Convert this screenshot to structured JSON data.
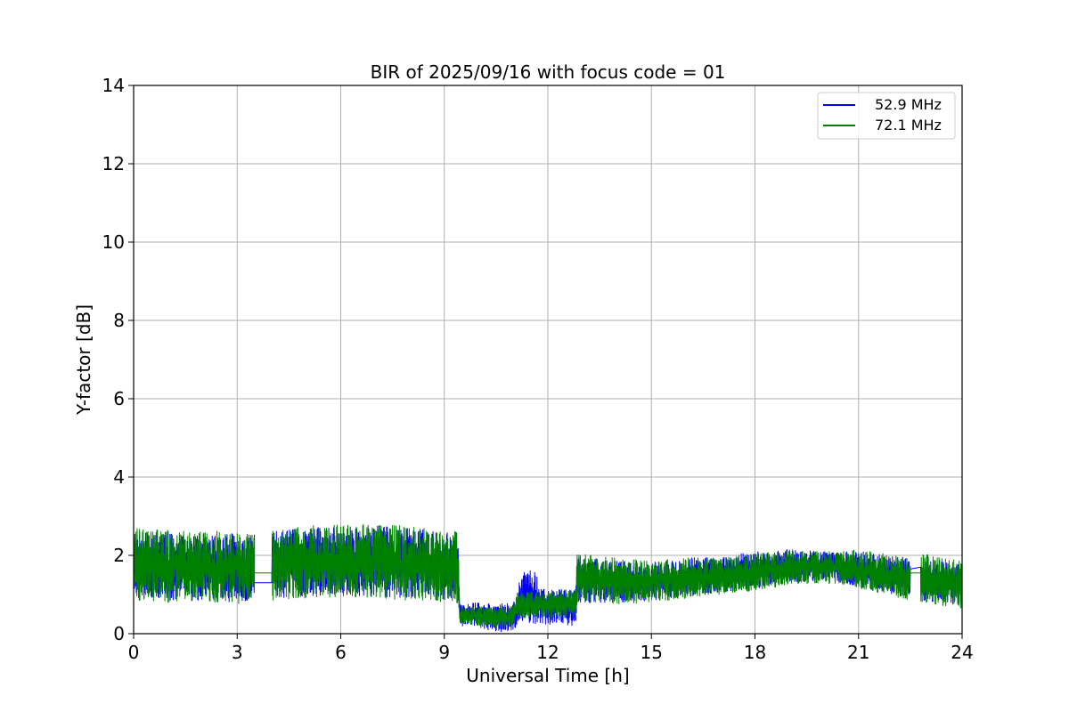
{
  "chart_data": {
    "type": "line",
    "title": "BIR of 2025/09/16 with focus code = 01",
    "xlabel": "Universal Time [h]",
    "ylabel": "Y-factor [dB]",
    "xlim": [
      0,
      24
    ],
    "ylim": [
      0,
      14
    ],
    "x_ticks": [
      0,
      3,
      6,
      9,
      12,
      15,
      18,
      21,
      24
    ],
    "y_ticks": [
      0,
      2,
      4,
      6,
      8,
      10,
      12,
      14
    ],
    "x_tick_labels": [
      "0",
      "3",
      "6",
      "9",
      "12",
      "15",
      "18",
      "21",
      "24"
    ],
    "y_tick_labels": [
      "0",
      "2",
      "4",
      "6",
      "8",
      "10",
      "12",
      "14"
    ],
    "grid": true,
    "legend_position": "top-right",
    "series": [
      {
        "name": "52.9 MHz",
        "color": "#0000ff",
        "envelope": [
          {
            "x": 0.0,
            "min": 0.9,
            "max": 2.6
          },
          {
            "x": 1.0,
            "min": 0.85,
            "max": 2.6
          },
          {
            "x": 2.0,
            "min": 0.85,
            "max": 2.5
          },
          {
            "x": 3.0,
            "min": 0.8,
            "max": 2.6
          },
          {
            "x": 3.5,
            "min": 0.85,
            "max": 2.55
          },
          {
            "x": 3.5,
            "min": 1.3,
            "max": 1.3
          },
          {
            "x": 4.0,
            "min": 1.3,
            "max": 1.3
          },
          {
            "x": 4.0,
            "min": 0.9,
            "max": 2.6
          },
          {
            "x": 5.0,
            "min": 0.95,
            "max": 2.7
          },
          {
            "x": 6.0,
            "min": 1.0,
            "max": 2.75
          },
          {
            "x": 7.0,
            "min": 0.95,
            "max": 2.75
          },
          {
            "x": 8.0,
            "min": 0.9,
            "max": 2.7
          },
          {
            "x": 9.0,
            "min": 0.85,
            "max": 2.6
          },
          {
            "x": 9.4,
            "min": 0.8,
            "max": 2.6
          },
          {
            "x": 9.45,
            "min": 0.2,
            "max": 0.75
          },
          {
            "x": 10.0,
            "min": 0.15,
            "max": 0.8
          },
          {
            "x": 10.5,
            "min": 0.05,
            "max": 0.75
          },
          {
            "x": 11.0,
            "min": 0.05,
            "max": 0.8
          },
          {
            "x": 11.3,
            "min": 0.3,
            "max": 1.75
          },
          {
            "x": 11.6,
            "min": 0.25,
            "max": 1.6
          },
          {
            "x": 12.0,
            "min": 0.2,
            "max": 1.1
          },
          {
            "x": 12.8,
            "min": 0.2,
            "max": 1.15
          },
          {
            "x": 12.85,
            "min": 0.8,
            "max": 2.0
          },
          {
            "x": 14.0,
            "min": 0.8,
            "max": 1.85
          },
          {
            "x": 15.0,
            "min": 0.85,
            "max": 1.8
          },
          {
            "x": 16.0,
            "min": 0.95,
            "max": 1.95
          },
          {
            "x": 17.0,
            "min": 1.05,
            "max": 1.95
          },
          {
            "x": 18.0,
            "min": 1.15,
            "max": 2.1
          },
          {
            "x": 19.0,
            "min": 1.3,
            "max": 2.15
          },
          {
            "x": 20.0,
            "min": 1.35,
            "max": 2.1
          },
          {
            "x": 21.0,
            "min": 1.2,
            "max": 2.1
          },
          {
            "x": 22.0,
            "min": 1.0,
            "max": 2.0
          },
          {
            "x": 22.5,
            "min": 0.9,
            "max": 1.95
          },
          {
            "x": 22.5,
            "min": 1.65,
            "max": 1.65
          },
          {
            "x": 22.8,
            "min": 1.7,
            "max": 1.7
          },
          {
            "x": 22.8,
            "min": 0.85,
            "max": 1.9
          },
          {
            "x": 24.0,
            "min": 0.7,
            "max": 1.8
          }
        ]
      },
      {
        "name": "72.1 MHz",
        "color": "#008000",
        "envelope": [
          {
            "x": 0.0,
            "min": 0.85,
            "max": 2.7
          },
          {
            "x": 1.0,
            "min": 0.8,
            "max": 2.65
          },
          {
            "x": 2.0,
            "min": 0.8,
            "max": 2.6
          },
          {
            "x": 3.0,
            "min": 0.75,
            "max": 2.65
          },
          {
            "x": 3.5,
            "min": 0.8,
            "max": 2.6
          },
          {
            "x": 3.5,
            "min": 1.55,
            "max": 1.55
          },
          {
            "x": 4.0,
            "min": 1.55,
            "max": 1.55
          },
          {
            "x": 4.0,
            "min": 0.85,
            "max": 2.7
          },
          {
            "x": 5.0,
            "min": 0.9,
            "max": 2.75
          },
          {
            "x": 6.0,
            "min": 0.95,
            "max": 2.8
          },
          {
            "x": 7.0,
            "min": 0.9,
            "max": 2.8
          },
          {
            "x": 8.0,
            "min": 0.85,
            "max": 2.75
          },
          {
            "x": 9.0,
            "min": 0.8,
            "max": 2.7
          },
          {
            "x": 9.4,
            "min": 0.75,
            "max": 2.65
          },
          {
            "x": 9.45,
            "min": 0.25,
            "max": 0.65
          },
          {
            "x": 10.0,
            "min": 0.2,
            "max": 0.7
          },
          {
            "x": 10.5,
            "min": 0.15,
            "max": 0.65
          },
          {
            "x": 11.0,
            "min": 0.2,
            "max": 0.7
          },
          {
            "x": 11.1,
            "min": 0.4,
            "max": 1.05
          },
          {
            "x": 12.0,
            "min": 0.4,
            "max": 1.1
          },
          {
            "x": 12.8,
            "min": 0.45,
            "max": 1.1
          },
          {
            "x": 12.85,
            "min": 0.8,
            "max": 2.05
          },
          {
            "x": 14.0,
            "min": 0.75,
            "max": 1.95
          },
          {
            "x": 15.0,
            "min": 0.8,
            "max": 1.85
          },
          {
            "x": 16.0,
            "min": 0.9,
            "max": 1.95
          },
          {
            "x": 17.0,
            "min": 1.0,
            "max": 1.95
          },
          {
            "x": 18.0,
            "min": 1.1,
            "max": 2.05
          },
          {
            "x": 19.0,
            "min": 1.25,
            "max": 2.15
          },
          {
            "x": 20.0,
            "min": 1.3,
            "max": 2.1
          },
          {
            "x": 21.0,
            "min": 1.15,
            "max": 2.15
          },
          {
            "x": 22.0,
            "min": 0.95,
            "max": 2.0
          },
          {
            "x": 22.5,
            "min": 0.85,
            "max": 1.95
          },
          {
            "x": 22.5,
            "min": 1.55,
            "max": 1.55
          },
          {
            "x": 22.8,
            "min": 1.55,
            "max": 1.55
          },
          {
            "x": 22.8,
            "min": 0.8,
            "max": 2.05
          },
          {
            "x": 24.0,
            "min": 0.65,
            "max": 1.85
          }
        ]
      }
    ]
  }
}
